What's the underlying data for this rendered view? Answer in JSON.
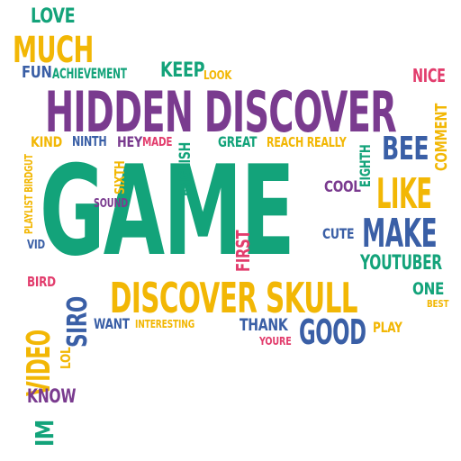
{
  "palette": {
    "green": "#13a37a",
    "purple": "#7a3b8f",
    "yellow": "#f2b705",
    "blue": "#3a5fa6",
    "pink": "#e23d6d"
  },
  "words": [
    {
      "text": "GAME",
      "color": "green"
    },
    {
      "text": "HIDDEN DISCOVER",
      "color": "purple"
    },
    {
      "text": "DISCOVER SKULL",
      "color": "yellow"
    },
    {
      "text": "MUCH",
      "color": "yellow"
    },
    {
      "text": "LIKE",
      "color": "yellow"
    },
    {
      "text": "MAKE",
      "color": "blue"
    },
    {
      "text": "BEE",
      "color": "blue"
    },
    {
      "text": "GOOD",
      "color": "blue"
    },
    {
      "text": "VIDEO",
      "color": "yellow"
    },
    {
      "text": "SIRO",
      "color": "blue"
    },
    {
      "text": "LOVE",
      "color": "green"
    },
    {
      "text": "KEEP",
      "color": "green"
    },
    {
      "text": "NICE",
      "color": "pink"
    },
    {
      "text": "FUN",
      "color": "blue"
    },
    {
      "text": "ACHIEVEMENT",
      "color": "green"
    },
    {
      "text": "LOOK",
      "color": "yellow"
    },
    {
      "text": "COMMENT",
      "color": "yellow"
    },
    {
      "text": "KIND",
      "color": "yellow"
    },
    {
      "text": "NINTH",
      "color": "blue"
    },
    {
      "text": "HEY",
      "color": "purple"
    },
    {
      "text": "MADE",
      "color": "pink"
    },
    {
      "text": "ENGLISH",
      "color": "green"
    },
    {
      "text": "GREAT",
      "color": "green"
    },
    {
      "text": "REACH REALLY",
      "color": "yellow"
    },
    {
      "text": "EIGHTH",
      "color": "green"
    },
    {
      "text": "COOL",
      "color": "purple"
    },
    {
      "text": "SIXTH",
      "color": "yellow"
    },
    {
      "text": "SOUND",
      "color": "purple"
    },
    {
      "text": "PLAYLIST BIRDGUT",
      "color": "yellow"
    },
    {
      "text": "CUTE",
      "color": "blue"
    },
    {
      "text": "FIRST",
      "color": "pink"
    },
    {
      "text": "YOUTUBER",
      "color": "green"
    },
    {
      "text": "VID",
      "color": "blue"
    },
    {
      "text": "BIRD",
      "color": "pink"
    },
    {
      "text": "ONE",
      "color": "green"
    },
    {
      "text": "BEST",
      "color": "yellow"
    },
    {
      "text": "WANT",
      "color": "blue"
    },
    {
      "text": "INTERESTING",
      "color": "yellow"
    },
    {
      "text": "THANK",
      "color": "blue"
    },
    {
      "text": "YOURE",
      "color": "pink"
    },
    {
      "text": "PLAY",
      "color": "yellow"
    },
    {
      "text": "LOL",
      "color": "yellow"
    },
    {
      "text": "KNOW",
      "color": "purple"
    },
    {
      "text": "IM",
      "color": "green"
    }
  ]
}
